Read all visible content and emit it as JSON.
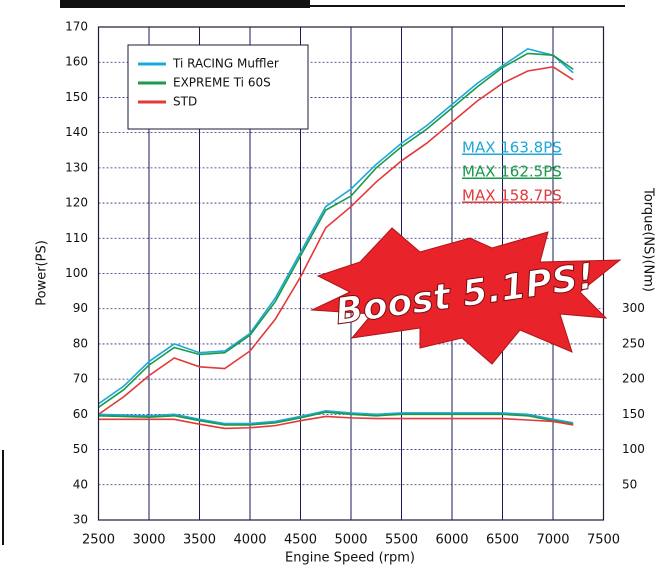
{
  "chart_data": {
    "type": "line",
    "x_label": "Engine Speed (rpm)",
    "y_label": "Power(PS)",
    "y2_label": "Torque(NS)(Nm)",
    "x": [
      2500,
      2750,
      3000,
      3250,
      3500,
      3750,
      4000,
      4250,
      4500,
      4750,
      5000,
      5250,
      5500,
      5750,
      6000,
      6250,
      6500,
      6750,
      7000,
      7200
    ],
    "series": [
      {
        "name": "Ti RACING Muffler",
        "color": "#1ea8d8",
        "values": [
          63,
          68,
          75,
          80,
          77.5,
          78,
          83,
          93,
          106,
          119,
          124,
          131,
          137,
          142,
          148,
          154,
          159,
          163.8,
          162,
          157
        ]
      },
      {
        "name": "EXPREME Ti 60S",
        "color": "#1a9a4a",
        "values": [
          62,
          67,
          74,
          79,
          77,
          77.5,
          82.5,
          92,
          105,
          118,
          122,
          130,
          136,
          141,
          147,
          153,
          158.5,
          162.5,
          162,
          158
        ]
      },
      {
        "name": "STD",
        "color": "#e03a3a",
        "values": [
          60,
          65,
          71,
          76,
          73.5,
          73,
          78,
          87,
          99,
          113,
          119,
          126,
          132,
          137,
          143,
          149,
          154,
          157.5,
          158.7,
          155
        ]
      },
      {
        "name": "Ti RACING Muffler",
        "color": "#1ea8d8",
        "axis": "y2",
        "values": [
          150,
          149,
          148,
          150,
          143,
          137,
          137,
          140,
          147,
          155,
          152,
          150,
          152,
          152,
          152,
          152,
          152,
          150,
          143,
          138
        ]
      },
      {
        "name": "EXPREME Ti 60S",
        "color": "#1a9a4a",
        "axis": "y2",
        "values": [
          148,
          147,
          146,
          148,
          141,
          135,
          135,
          138,
          145,
          153,
          150,
          148,
          150,
          150,
          150,
          150,
          150,
          148,
          141,
          136
        ]
      },
      {
        "name": "STD",
        "color": "#e03a3a",
        "axis": "y2",
        "values": [
          143,
          143,
          143,
          143,
          136,
          130,
          131,
          134,
          141,
          147,
          145,
          144,
          144,
          144,
          144,
          144,
          144,
          142,
          140,
          135
        ]
      }
    ],
    "xlim": [
      2500,
      7500
    ],
    "xticks": [
      2500,
      3000,
      3500,
      4000,
      4500,
      5000,
      5500,
      6000,
      6500,
      7000,
      7500
    ],
    "ylim": [
      30,
      170
    ],
    "yticks": [
      30,
      40,
      50,
      60,
      70,
      80,
      90,
      100,
      110,
      120,
      130,
      140,
      150,
      160,
      170
    ],
    "y2lim": [
      0,
      700
    ],
    "y2ticks": [
      50,
      100,
      150,
      200,
      250,
      300
    ],
    "grid": true,
    "annotations": [
      {
        "text": "MAX 163.8PS",
        "color": "#1ea8d8"
      },
      {
        "text": "MAX 162.5PS",
        "color": "#1a9a4a"
      },
      {
        "text": "MAX 158.7PS",
        "color": "#e03a3a"
      }
    ],
    "callout": "Boost 5.1PS!"
  }
}
